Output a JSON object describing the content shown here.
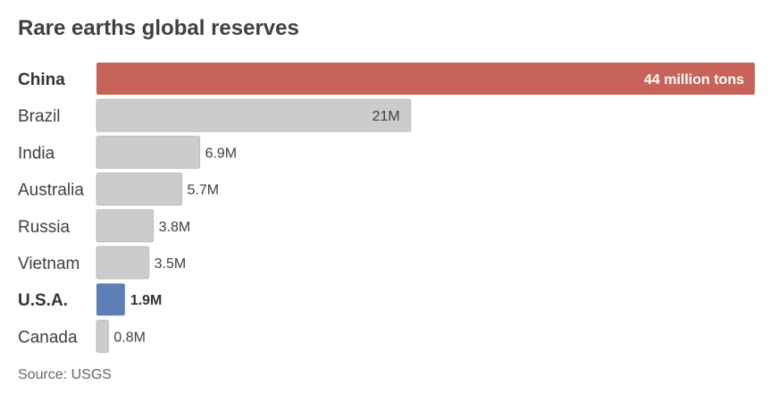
{
  "title": "Rare earths global reserves",
  "source": "Source: USGS",
  "chart_data": {
    "type": "bar",
    "orientation": "horizontal",
    "title": "Rare earths global reserves",
    "unit": "million tons",
    "categories": [
      "China",
      "Brazil",
      "India",
      "Australia",
      "Russia",
      "Vietnam",
      "U.S.A.",
      "Canada"
    ],
    "values": [
      44,
      21,
      6.9,
      5.7,
      3.8,
      3.5,
      1.9,
      0.8
    ],
    "value_labels": [
      "44 million tons",
      "21M",
      "6.9M",
      "5.7M",
      "3.8M",
      "3.5M",
      "1.9M",
      "0.8M"
    ],
    "highlight": {
      "China": "#c8635a",
      "U.S.A.": "#5b7fb6"
    },
    "bold_categories": [
      "China",
      "U.S.A."
    ],
    "default_color": "#cccccc",
    "xlim": [
      0,
      44
    ],
    "grid": false,
    "legend": "none"
  }
}
